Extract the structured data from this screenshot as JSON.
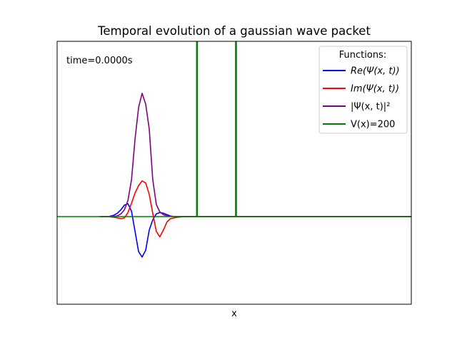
{
  "chart_data": {
    "type": "line",
    "title": "Temporal evolution of a gaussian wave packet",
    "xlabel": "x",
    "ylabel": "",
    "xlim": [
      0,
      10
    ],
    "ylim": [
      -1.3,
      2.6
    ],
    "x_ticks_visible": false,
    "y_ticks_visible": false,
    "grid": false,
    "annotation": "time=0.0000s",
    "legend": {
      "title": "Functions:",
      "position": "top-right",
      "entries": [
        {
          "label": "Re(Ψ(x, t))",
          "color": "#0000ff"
        },
        {
          "label": "Im(Ψ(x, t))",
          "color": "#ff0000"
        },
        {
          "label": "|Ψ(x, t)|²",
          "color": "#800080"
        },
        {
          "label": "V(x)=200",
          "color": "#008000"
        }
      ]
    },
    "series": [
      {
        "name": "Re(Ψ(x, t))",
        "color": "#0000ff",
        "x": [
          1.2,
          1.45,
          1.6,
          1.7,
          1.8,
          1.9,
          2.0,
          2.1,
          2.2,
          2.3,
          2.4,
          2.5,
          2.6,
          2.7,
          2.8,
          2.9,
          3.0,
          3.1,
          3.2,
          3.3,
          3.4,
          3.6,
          3.9,
          10
        ],
        "y": [
          0,
          0,
          0.02,
          0.05,
          0.1,
          0.17,
          0.19,
          0.08,
          -0.22,
          -0.52,
          -0.6,
          -0.5,
          -0.2,
          -0.05,
          0.04,
          0.06,
          0.05,
          0.03,
          0.01,
          0.0,
          0.0,
          0,
          0,
          0
        ]
      },
      {
        "name": "Im(Ψ(x, t))",
        "color": "#ff0000",
        "x": [
          1.2,
          1.4,
          1.6,
          1.7,
          1.8,
          1.9,
          2.0,
          2.1,
          2.2,
          2.3,
          2.4,
          2.5,
          2.6,
          2.7,
          2.8,
          2.9,
          3.0,
          3.1,
          3.2,
          3.4,
          3.6,
          3.9,
          10
        ],
        "y": [
          0,
          0,
          -0.01,
          -0.02,
          -0.03,
          -0.02,
          0.06,
          0.2,
          0.35,
          0.46,
          0.53,
          0.5,
          0.33,
          0.05,
          -0.22,
          -0.3,
          -0.2,
          -0.08,
          -0.03,
          -0.01,
          0,
          0,
          0
        ]
      },
      {
        "name": "|Ψ(x, t)|²",
        "color": "#800080",
        "x": [
          1.2,
          1.5,
          1.7,
          1.8,
          1.9,
          2.0,
          2.1,
          2.2,
          2.3,
          2.4,
          2.5,
          2.6,
          2.7,
          2.8,
          2.9,
          3.0,
          3.1,
          3.2,
          3.4,
          3.6,
          3.9,
          10
        ],
        "y": [
          0,
          0,
          0.01,
          0.04,
          0.1,
          0.24,
          0.55,
          1.15,
          1.62,
          1.83,
          1.67,
          1.3,
          0.55,
          0.18,
          0.07,
          0.03,
          0.01,
          0.005,
          0,
          0,
          0,
          0
        ]
      },
      {
        "name": "V(x)=200",
        "color": "#008000",
        "x": [
          0,
          3.94,
          3.94,
          3.96,
          3.96,
          5.04,
          5.04,
          5.06,
          5.06,
          10
        ],
        "y": [
          0,
          0,
          2.6,
          2.6,
          0,
          0,
          2.6,
          2.6,
          0,
          0
        ]
      }
    ]
  }
}
